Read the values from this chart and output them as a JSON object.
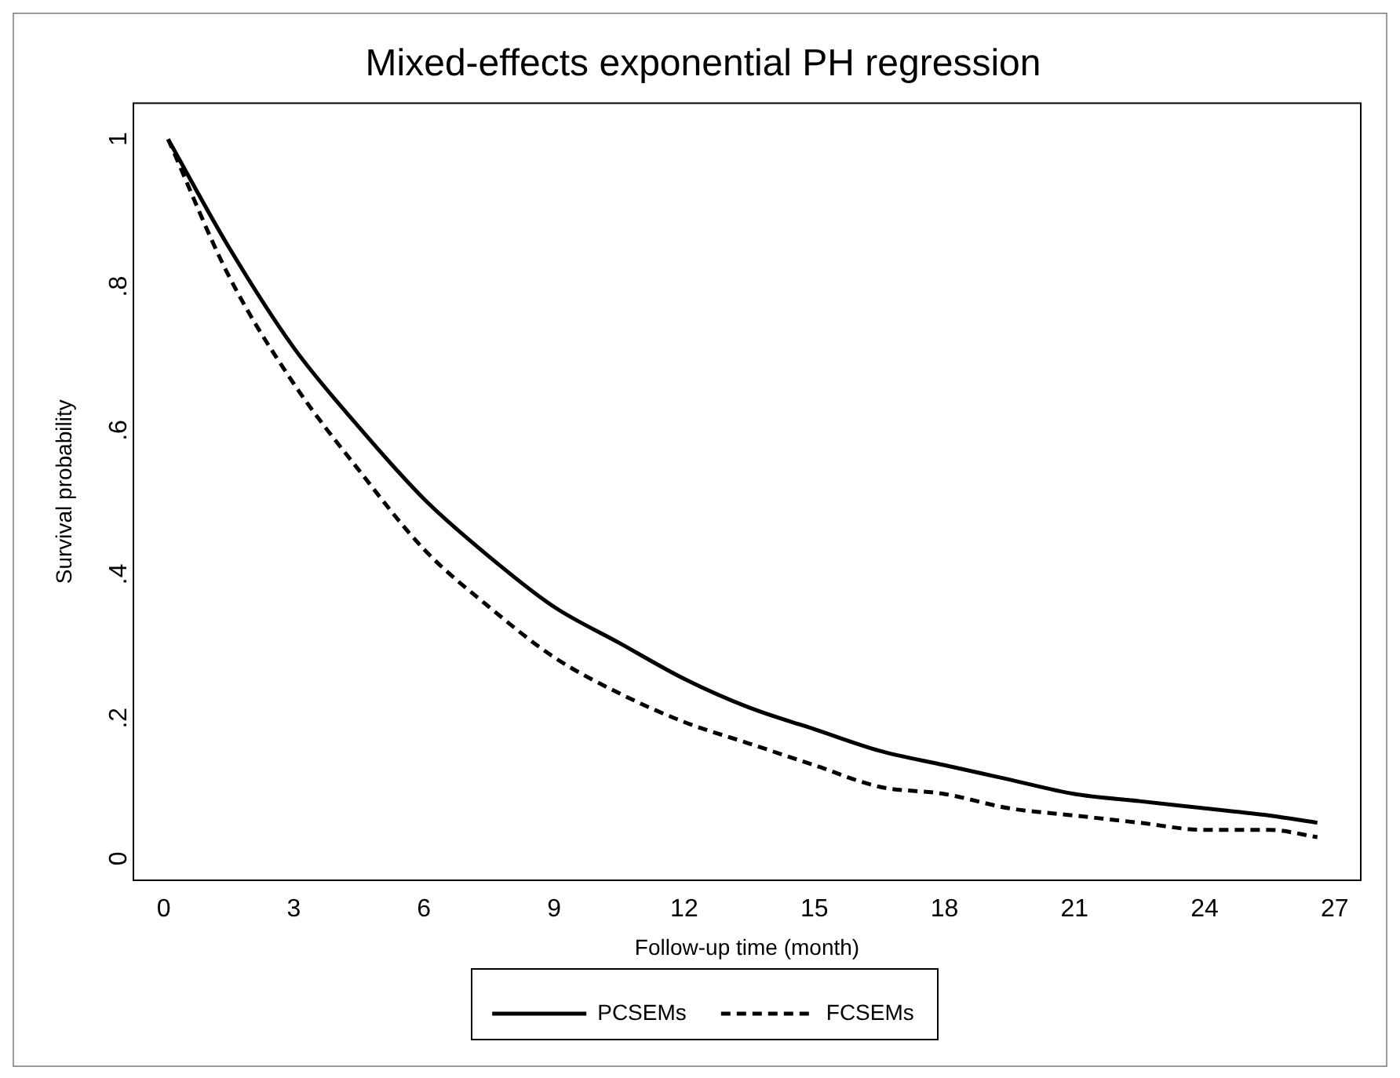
{
  "chart_data": {
    "type": "line",
    "title": "Mixed-effects exponential PH regression",
    "xlabel": "Follow-up time (month)",
    "ylabel": "Survival probability",
    "x": [
      0.1,
      1.5,
      3,
      4.5,
      6,
      7.5,
      9,
      10.5,
      12,
      13.5,
      15,
      16.5,
      18,
      19.5,
      21,
      22.5,
      24,
      25.5,
      26.6
    ],
    "series": [
      {
        "name": "PCSEMs",
        "color": "#000000",
        "line_style": "solid",
        "values": [
          0.99,
          0.84,
          0.7,
          0.59,
          0.49,
          0.41,
          0.34,
          0.29,
          0.24,
          0.2,
          0.17,
          0.14,
          0.12,
          0.1,
          0.08,
          0.07,
          0.06,
          0.05,
          0.04
        ]
      },
      {
        "name": "FCSEMs",
        "color": "#000000",
        "line_style": "dashed",
        "values": [
          0.99,
          0.8,
          0.65,
          0.53,
          0.42,
          0.34,
          0.27,
          0.22,
          0.18,
          0.15,
          0.12,
          0.09,
          0.08,
          0.06,
          0.05,
          0.04,
          0.03,
          0.03,
          0.02
        ]
      }
    ],
    "xlim": [
      -0.7,
      27.6
    ],
    "xticks": [
      0,
      3,
      6,
      9,
      12,
      15,
      18,
      21,
      24,
      27
    ],
    "ylim": [
      -0.04,
      1.04
    ],
    "yticks": [
      0,
      {
        "value": 0.2,
        "label": ".2"
      },
      {
        "value": 0.4,
        "label": ".4"
      },
      {
        "value": 0.6,
        "label": ".6"
      },
      {
        "value": 0.8,
        "label": ".8"
      },
      {
        "value": 1,
        "label": "1"
      }
    ],
    "grid": false,
    "legend": "bottom",
    "marker": "none"
  }
}
